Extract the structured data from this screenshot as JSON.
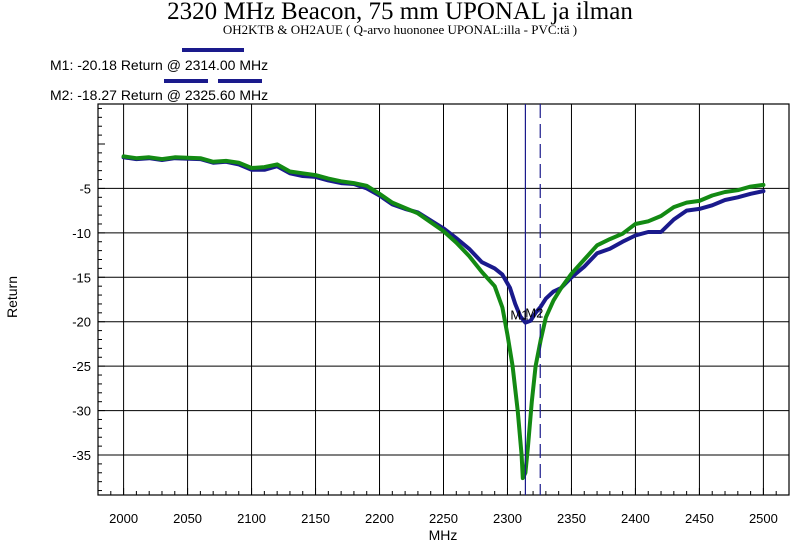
{
  "header": {
    "title": "2320 MHz Beacon, 75 mm UPONAL ja ilman",
    "subtitle": "OH2KTB & OH2AUE ( Q-arvo huononee UPONAL:illa - PVC:tä )"
  },
  "markers": [
    {
      "id": "M1",
      "text": "M1: -20.18 Return @ 2314.00 MHz",
      "freq": 2314.0,
      "value": -20.18,
      "color": "#1a1a8c",
      "dashed": false
    },
    {
      "id": "M2",
      "text": "M2: -18.27 Return @ 2325.60 MHz",
      "freq": 2325.6,
      "value": -18.27,
      "color": "#1a1a8c",
      "dashed": true
    }
  ],
  "chart_data": {
    "type": "line",
    "xlabel": "MHz",
    "ylabel": "Return",
    "xlim": [
      1980,
      2520
    ],
    "ylim": [
      -39.5,
      4.5
    ],
    "xticks": [
      2000,
      2050,
      2100,
      2150,
      2200,
      2250,
      2300,
      2350,
      2400,
      2450,
      2500
    ],
    "yticks": [
      -5,
      -10,
      -15,
      -20,
      -25,
      -30,
      -35
    ],
    "grid": true,
    "legend": "none",
    "series": [
      {
        "color": "#1a1a8c",
        "points": [
          [
            2000,
            -1.5
          ],
          [
            2010,
            -1.7
          ],
          [
            2020,
            -1.6
          ],
          [
            2030,
            -1.8
          ],
          [
            2040,
            -1.6
          ],
          [
            2060,
            -1.7
          ],
          [
            2070,
            -2.1
          ],
          [
            2080,
            -2.0
          ],
          [
            2090,
            -2.3
          ],
          [
            2100,
            -2.9
          ],
          [
            2110,
            -2.9
          ],
          [
            2120,
            -2.5
          ],
          [
            2130,
            -3.3
          ],
          [
            2140,
            -3.6
          ],
          [
            2150,
            -3.7
          ],
          [
            2160,
            -4.1
          ],
          [
            2170,
            -4.4
          ],
          [
            2180,
            -4.5
          ],
          [
            2190,
            -5.0
          ],
          [
            2200,
            -5.8
          ],
          [
            2210,
            -6.8
          ],
          [
            2220,
            -7.3
          ],
          [
            2230,
            -7.7
          ],
          [
            2240,
            -8.6
          ],
          [
            2250,
            -9.5
          ],
          [
            2260,
            -10.6
          ],
          [
            2270,
            -11.8
          ],
          [
            2280,
            -13.3
          ],
          [
            2290,
            -14.0
          ],
          [
            2296,
            -14.7
          ],
          [
            2302,
            -16.2
          ],
          [
            2306,
            -18.0
          ],
          [
            2310,
            -19.4
          ],
          [
            2314,
            -20.1
          ],
          [
            2318,
            -19.9
          ],
          [
            2322,
            -19.0
          ],
          [
            2326,
            -18.3
          ],
          [
            2330,
            -17.4
          ],
          [
            2336,
            -16.6
          ],
          [
            2342,
            -16.2
          ],
          [
            2350,
            -15.0
          ],
          [
            2360,
            -13.8
          ],
          [
            2370,
            -12.3
          ],
          [
            2380,
            -11.8
          ],
          [
            2390,
            -11.0
          ],
          [
            2400,
            -10.3
          ],
          [
            2410,
            -9.9
          ],
          [
            2420,
            -9.9
          ],
          [
            2430,
            -8.5
          ],
          [
            2440,
            -7.5
          ],
          [
            2450,
            -7.3
          ],
          [
            2460,
            -6.9
          ],
          [
            2470,
            -6.3
          ],
          [
            2480,
            -6.0
          ],
          [
            2490,
            -5.6
          ],
          [
            2500,
            -5.3
          ]
        ]
      },
      {
        "color": "#138a13",
        "points": [
          [
            2000,
            -1.4
          ],
          [
            2010,
            -1.6
          ],
          [
            2020,
            -1.5
          ],
          [
            2030,
            -1.7
          ],
          [
            2040,
            -1.5
          ],
          [
            2060,
            -1.6
          ],
          [
            2070,
            -2.0
          ],
          [
            2080,
            -1.9
          ],
          [
            2090,
            -2.1
          ],
          [
            2100,
            -2.7
          ],
          [
            2110,
            -2.6
          ],
          [
            2120,
            -2.3
          ],
          [
            2130,
            -3.1
          ],
          [
            2140,
            -3.3
          ],
          [
            2150,
            -3.5
          ],
          [
            2160,
            -3.9
          ],
          [
            2170,
            -4.2
          ],
          [
            2180,
            -4.4
          ],
          [
            2190,
            -4.7
          ],
          [
            2200,
            -5.6
          ],
          [
            2210,
            -6.6
          ],
          [
            2220,
            -7.2
          ],
          [
            2230,
            -7.8
          ],
          [
            2240,
            -8.8
          ],
          [
            2250,
            -9.8
          ],
          [
            2260,
            -11.1
          ],
          [
            2270,
            -12.6
          ],
          [
            2280,
            -14.4
          ],
          [
            2290,
            -16.0
          ],
          [
            2296,
            -18.4
          ],
          [
            2300,
            -21.5
          ],
          [
            2304,
            -25.0
          ],
          [
            2308,
            -30.0
          ],
          [
            2311,
            -35.0
          ],
          [
            2312,
            -37.6
          ],
          [
            2314,
            -37.0
          ],
          [
            2316,
            -34.0
          ],
          [
            2319,
            -29.0
          ],
          [
            2322,
            -25.0
          ],
          [
            2326,
            -22.0
          ],
          [
            2330,
            -19.5
          ],
          [
            2336,
            -17.6
          ],
          [
            2342,
            -16.2
          ],
          [
            2350,
            -14.6
          ],
          [
            2360,
            -13.0
          ],
          [
            2370,
            -11.4
          ],
          [
            2380,
            -10.7
          ],
          [
            2390,
            -10.1
          ],
          [
            2400,
            -9.0
          ],
          [
            2410,
            -8.7
          ],
          [
            2420,
            -8.1
          ],
          [
            2430,
            -7.1
          ],
          [
            2440,
            -6.6
          ],
          [
            2450,
            -6.4
          ],
          [
            2460,
            -5.8
          ],
          [
            2470,
            -5.4
          ],
          [
            2480,
            -5.2
          ],
          [
            2490,
            -4.8
          ],
          [
            2500,
            -4.6
          ]
        ]
      }
    ]
  }
}
